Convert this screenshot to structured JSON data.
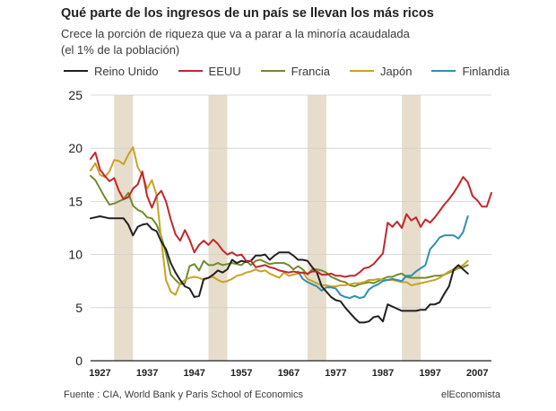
{
  "header": {
    "title": "Qué parte de los ingresos de un país se llevan los más ricos",
    "subtitle_line1": "Crece la porción de riqueza que va a parar a la minoría acaudalada",
    "subtitle_line2": "(el 1% de la población)"
  },
  "footer": {
    "source": "Fuente : CIA, World Bank y Paris School of Economics",
    "brand": "elEconomista"
  },
  "chart_data": {
    "type": "line",
    "title": "Qué parte de los ingresos de un país se llevan los más ricos",
    "xlabel": "",
    "ylabel": "",
    "xlim": [
      1925,
      2010
    ],
    "ylim": [
      0,
      25
    ],
    "x_ticks": [
      "1927",
      "1937",
      "1947",
      "1957",
      "1967",
      "1977",
      "1987",
      "1997",
      "2007"
    ],
    "y_ticks": [
      "0",
      "5",
      "10",
      "15",
      "20",
      "25"
    ],
    "shaded_decades": [
      [
        1930,
        1934
      ],
      [
        1950,
        1954
      ],
      [
        1971,
        1975
      ],
      [
        1991,
        1995
      ]
    ],
    "grid": "horizontal",
    "legend_position": "top",
    "series": [
      {
        "name": "Reino Unido",
        "color": "#231f20",
        "x": [
          1925,
          1926,
          1927,
          1928,
          1929,
          1930,
          1931,
          1932,
          1933,
          1934,
          1935,
          1936,
          1937,
          1938,
          1939,
          1940,
          1941,
          1942,
          1943,
          1944,
          1945,
          1946,
          1947,
          1948,
          1949,
          1950,
          1951,
          1952,
          1953,
          1954,
          1955,
          1956,
          1957,
          1958,
          1959,
          1960,
          1961,
          1962,
          1963,
          1964,
          1965,
          1966,
          1967,
          1968,
          1969,
          1970,
          1971,
          1972,
          1973,
          1974,
          1975,
          1976,
          1977,
          1978,
          1979,
          1980,
          1981,
          1982,
          1983,
          1984,
          1985,
          1986,
          1987,
          1988,
          1989,
          1990,
          1991,
          1992,
          1993,
          1994,
          1995,
          1996,
          1997,
          1998,
          1999,
          2000,
          2001,
          2002,
          2003,
          2004,
          2005
        ],
        "y": [
          13.4,
          13.5,
          13.6,
          13.5,
          13.4,
          13.4,
          13.4,
          13.4,
          12.8,
          11.8,
          12.6,
          12.8,
          12.9,
          12.4,
          12.2,
          11.2,
          10.5,
          9.2,
          8.3,
          7.6,
          7.0,
          6.8,
          6.0,
          6.1,
          7.7,
          7.8,
          8.1,
          8.5,
          8.3,
          8.6,
          9.5,
          9.2,
          9.4,
          9.3,
          9.4,
          9.9,
          9.9,
          10.0,
          9.5,
          9.9,
          10.2,
          10.2,
          10.2,
          9.9,
          9.5,
          9.5,
          9.4,
          8.8,
          8.3,
          7.0,
          6.5,
          6.0,
          5.7,
          5.6,
          5.0,
          4.5,
          4.0,
          3.6,
          3.6,
          3.7,
          4.1,
          4.2,
          3.7,
          5.3,
          5.1,
          4.9,
          4.7,
          4.7,
          4.7,
          4.7,
          4.8,
          4.8,
          5.3,
          5.3,
          5.5,
          6.3,
          7.0,
          8.6,
          9.0,
          8.6,
          8.2
        ]
      },
      {
        "name": "EEUU",
        "color": "#c1272d",
        "x": [
          1925,
          1926,
          1927,
          1928,
          1929,
          1930,
          1931,
          1932,
          1933,
          1934,
          1935,
          1936,
          1937,
          1938,
          1939,
          1940,
          1941,
          1942,
          1943,
          1944,
          1945,
          1946,
          1947,
          1948,
          1949,
          1950,
          1951,
          1952,
          1953,
          1954,
          1955,
          1956,
          1957,
          1958,
          1959,
          1960,
          1961,
          1962,
          1963,
          1964,
          1965,
          1966,
          1967,
          1968,
          1969,
          1970,
          1971,
          1972,
          1973,
          1974,
          1975,
          1976,
          1977,
          1978,
          1979,
          1980,
          1981,
          1982,
          1983,
          1984,
          1985,
          1986,
          1987,
          1988,
          1989,
          1990,
          1991,
          1992,
          1993,
          1994,
          1995,
          1996,
          1997,
          1998,
          1999,
          2000,
          2001,
          2002,
          2003,
          2004,
          2005,
          2006,
          2007,
          2008,
          2009,
          2010
        ],
        "y": [
          19.0,
          19.6,
          18.0,
          17.4,
          16.9,
          17.2,
          16.0,
          15.2,
          15.4,
          16.2,
          16.6,
          17.8,
          15.5,
          14.4,
          15.5,
          16.0,
          15.0,
          13.3,
          11.9,
          11.3,
          12.3,
          11.4,
          10.2,
          10.9,
          11.3,
          10.9,
          11.4,
          11.0,
          10.4,
          10.0,
          10.2,
          9.9,
          10.0,
          9.4,
          9.4,
          8.8,
          8.9,
          9.0,
          8.8,
          8.7,
          8.5,
          8.4,
          8.3,
          8.4,
          8.3,
          8.3,
          8.2,
          8.4,
          8.4,
          8.1,
          8.1,
          8.2,
          8.0,
          8.0,
          7.9,
          8.0,
          8.0,
          8.3,
          8.7,
          8.8,
          9.1,
          9.6,
          10.1,
          13.0,
          12.6,
          13.1,
          12.5,
          13.8,
          13.2,
          13.5,
          12.6,
          13.3,
          13.0,
          13.5,
          14.1,
          14.7,
          15.2,
          15.8,
          16.5,
          17.3,
          16.8,
          15.5,
          15.1,
          14.5,
          14.5,
          15.8
        ]
      },
      {
        "name": "Francia",
        "color": "#6f8b2f",
        "x": [
          1925,
          1926,
          1927,
          1928,
          1929,
          1930,
          1931,
          1932,
          1933,
          1934,
          1935,
          1936,
          1937,
          1938,
          1939,
          1940,
          1941,
          1942,
          1943,
          1944,
          1945,
          1946,
          1947,
          1948,
          1949,
          1950,
          1951,
          1952,
          1953,
          1954,
          1955,
          1956,
          1957,
          1958,
          1959,
          1960,
          1961,
          1962,
          1963,
          1964,
          1965,
          1966,
          1967,
          1968,
          1969,
          1970,
          1971,
          1972,
          1973,
          1974,
          1975,
          1976,
          1977,
          1978,
          1979,
          1980,
          1981,
          1982,
          1983,
          1984,
          1985,
          1986,
          1987,
          1988,
          1989,
          1990,
          1991,
          1992,
          1993,
          1994,
          1995,
          1996,
          1997,
          1998,
          1999,
          2000,
          2001,
          2002,
          2003,
          2004,
          2005
        ],
        "y": [
          17.4,
          17.0,
          16.2,
          15.4,
          14.7,
          14.8,
          15.0,
          15.2,
          15.8,
          14.6,
          14.2,
          14.0,
          13.5,
          13.4,
          12.8,
          11.7,
          10.1,
          8.1,
          7.6,
          7.2,
          7.3,
          8.9,
          9.1,
          8.5,
          9.4,
          9.0,
          9.0,
          9.2,
          9.0,
          9.1,
          9.2,
          9.1,
          9.0,
          9.4,
          9.0,
          9.4,
          9.5,
          9.3,
          9.1,
          9.2,
          9.2,
          9.2,
          9.0,
          8.6,
          8.9,
          8.6,
          8.1,
          8.6,
          8.6,
          8.5,
          8.3,
          7.9,
          7.7,
          7.5,
          7.4,
          7.1,
          7.0,
          7.2,
          7.3,
          7.4,
          7.3,
          7.5,
          7.7,
          7.9,
          7.9,
          8.1,
          8.2,
          7.9,
          7.8,
          7.8,
          7.8,
          7.8,
          7.9,
          8.0,
          8.0,
          8.1,
          8.3,
          8.5,
          8.7,
          8.8,
          9.0
        ]
      },
      {
        "name": "Japón",
        "color": "#c9a227",
        "x": [
          1925,
          1926,
          1927,
          1928,
          1929,
          1930,
          1931,
          1932,
          1933,
          1934,
          1935,
          1936,
          1937,
          1938,
          1939,
          1940,
          1941,
          1942,
          1943,
          1944,
          1945,
          1946,
          1947,
          1948,
          1949,
          1950,
          1951,
          1952,
          1953,
          1954,
          1955,
          1956,
          1957,
          1958,
          1959,
          1960,
          1961,
          1962,
          1963,
          1964,
          1965,
          1966,
          1967,
          1968,
          1969,
          1970,
          1971,
          1972,
          1973,
          1974,
          1975,
          1976,
          1977,
          1978,
          1979,
          1980,
          1981,
          1982,
          1983,
          1984,
          1985,
          1986,
          1987,
          1988,
          1989,
          1990,
          1991,
          1992,
          1993,
          1994,
          1995,
          1996,
          1997,
          1998,
          1999,
          2000,
          2001,
          2002,
          2003,
          2004,
          2005
        ],
        "y": [
          17.9,
          18.6,
          17.5,
          17.3,
          17.8,
          18.9,
          18.8,
          18.5,
          19.4,
          20.1,
          18.2,
          17.5,
          16.2,
          17.0,
          15.6,
          11.3,
          7.6,
          6.5,
          6.2,
          7.3,
          7.6,
          7.8,
          7.9,
          7.8,
          7.6,
          7.8,
          7.9,
          7.6,
          7.4,
          7.5,
          7.7,
          8.0,
          8.1,
          8.3,
          8.4,
          8.6,
          8.4,
          8.5,
          8.2,
          8.0,
          7.8,
          8.3,
          8.0,
          8.1,
          8.2,
          8.3,
          7.7,
          7.5,
          7.3,
          7.1,
          7.1,
          7.0,
          7.0,
          7.1,
          7.1,
          7.2,
          7.3,
          7.3,
          7.4,
          7.6,
          7.6,
          7.7,
          7.6,
          7.6,
          7.6,
          7.5,
          7.4,
          7.4,
          7.1,
          7.2,
          7.3,
          7.4,
          7.5,
          7.6,
          7.8,
          8.1,
          8.4,
          8.6,
          8.8,
          9.0,
          9.4
        ]
      },
      {
        "name": "Finlandia",
        "color": "#2f8fb0",
        "x": [
          1969,
          1970,
          1971,
          1972,
          1973,
          1974,
          1975,
          1976,
          1977,
          1978,
          1979,
          1980,
          1981,
          1982,
          1983,
          1984,
          1985,
          1986,
          1987,
          1988,
          1989,
          1990,
          1991,
          1992,
          1993,
          1994,
          1995,
          1996,
          1997,
          1998,
          1999,
          2000,
          2001,
          2002,
          2003,
          2004,
          2005
        ],
        "y": [
          8.4,
          7.7,
          7.4,
          7.2,
          7.0,
          6.6,
          6.9,
          6.9,
          6.8,
          6.2,
          6.0,
          5.9,
          6.1,
          5.9,
          6.0,
          6.7,
          7.0,
          7.2,
          7.5,
          7.6,
          7.7,
          7.6,
          7.5,
          8.0,
          8.0,
          8.4,
          8.7,
          9.0,
          10.5,
          11.0,
          11.6,
          11.8,
          11.8,
          11.8,
          11.5,
          12.1,
          13.6
        ]
      }
    ]
  }
}
